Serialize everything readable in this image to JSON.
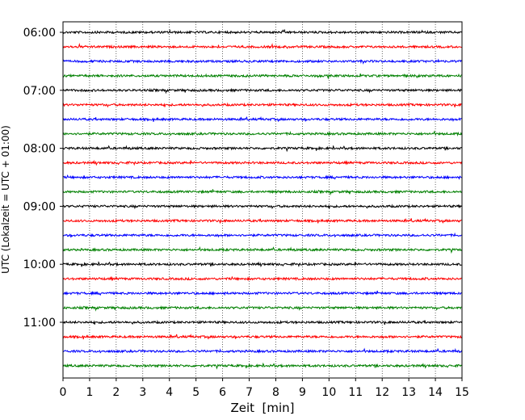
{
  "chart_data": {
    "type": "line",
    "title": "",
    "xlabel": "Zeit  [min]",
    "ylabel": "UTC (Lokalzeit = UTC + 01:00)",
    "xlim": [
      0,
      15
    ],
    "x_ticks": [
      0,
      1,
      2,
      3,
      4,
      5,
      6,
      7,
      8,
      9,
      10,
      11,
      12,
      13,
      14,
      15
    ],
    "y_tick_labels": [
      "06:00",
      "07:00",
      "08:00",
      "09:00",
      "10:00",
      "11:00"
    ],
    "trace_start_times": [
      "06:00",
      "06:15",
      "06:30",
      "06:45",
      "07:00",
      "07:15",
      "07:30",
      "07:45",
      "08:00",
      "08:15",
      "08:30",
      "08:45",
      "09:00",
      "09:15",
      "09:30",
      "09:45",
      "10:00",
      "10:15",
      "10:30",
      "10:45",
      "11:00",
      "11:15",
      "11:30",
      "11:45"
    ],
    "trace_colors": [
      "#000000",
      "#ff0000",
      "#0000ff",
      "#008000"
    ],
    "grid_x": "dotted vertical lines at each minute",
    "grid_y": false,
    "legend": "none"
  }
}
